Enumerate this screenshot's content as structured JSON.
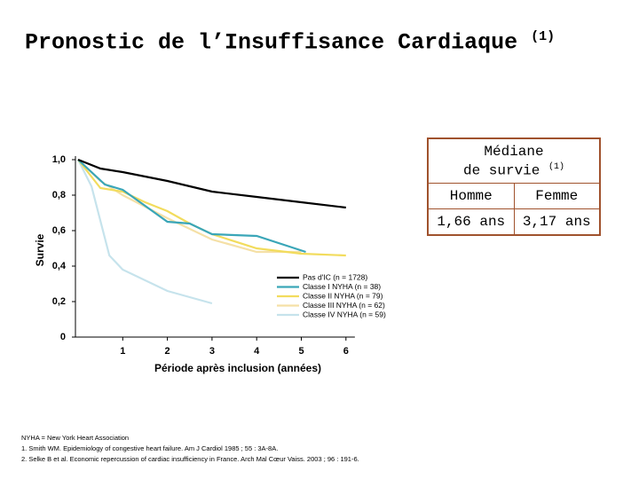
{
  "title": "Pronostic de l’Insuffisance Cardiaque",
  "title_ref": "(1)",
  "chart_data": {
    "type": "line",
    "x_label": "Période après inclusion (années)",
    "y_label": "Survie",
    "xlim": [
      0,
      6.2
    ],
    "ylim": [
      0,
      1.0
    ],
    "xticks": [
      1,
      2,
      3,
      4,
      5,
      6
    ],
    "yticks": [
      0,
      {
        "value": 0.2,
        "label": "0,2"
      },
      {
        "value": 0.4,
        "label": "0,4"
      },
      {
        "value": 0.6,
        "label": "0,6"
      },
      {
        "value": 0.8,
        "label": "0,8"
      },
      {
        "value": 1.0,
        "label": "1,0"
      }
    ],
    "legend": "lower right",
    "series": [
      {
        "name": "Pas d'IC (n = 1728)",
        "color": "#000000",
        "x": [
          0,
          0.5,
          1,
          2,
          3,
          4,
          5,
          6
        ],
        "values": [
          1.0,
          0.95,
          0.93,
          0.88,
          0.82,
          0.79,
          0.76,
          0.73
        ]
      },
      {
        "name": "Classe I NYHA (n = 38)",
        "color": "#3aa6b8",
        "x": [
          0,
          0.6,
          1,
          1.5,
          2,
          2.5,
          3,
          4,
          5.1
        ],
        "values": [
          1.0,
          0.86,
          0.83,
          0.74,
          0.65,
          0.64,
          0.58,
          0.57,
          0.48
        ]
      },
      {
        "name": "Classe II NYHA (n = 79)",
        "color": "#f2dc5d",
        "x": [
          0,
          0.5,
          1,
          1.5,
          2,
          2.5,
          3,
          4,
          5,
          6
        ],
        "values": [
          1.0,
          0.84,
          0.82,
          0.76,
          0.71,
          0.64,
          0.58,
          0.5,
          0.47,
          0.46
        ]
      },
      {
        "name": "Classe III NYHA (n = 62)",
        "color": "#f5e0a6",
        "x": [
          0,
          0.5,
          1,
          2,
          3,
          4,
          5
        ],
        "values": [
          1.0,
          0.88,
          0.8,
          0.67,
          0.55,
          0.48,
          0.48
        ]
      },
      {
        "name": "Classe IV NYHA (n = 59)",
        "color": "#c6e3ec",
        "x": [
          0,
          0.3,
          0.7,
          1,
          2,
          3
        ],
        "values": [
          1.0,
          0.85,
          0.46,
          0.38,
          0.26,
          0.19
        ]
      }
    ]
  },
  "table": {
    "header": "Médiane\nde survie",
    "header_ref": "(1)",
    "columns": [
      "Homme",
      "Femme"
    ],
    "row": [
      "1,66 ans",
      "3,17 ans"
    ]
  },
  "footnotes": [
    "NYHA = New York Heart Association",
    "1. Smith WM. Epidemiology of congestive heart failure. Am J Cardiol 1985 ; 55 : 3A-8A.",
    "2. Selke B et al. Economic repercussion of cardiac insufficiency in France. Arch Mal Cœur Vaiss. 2003 ; 96 : 191-6."
  ]
}
